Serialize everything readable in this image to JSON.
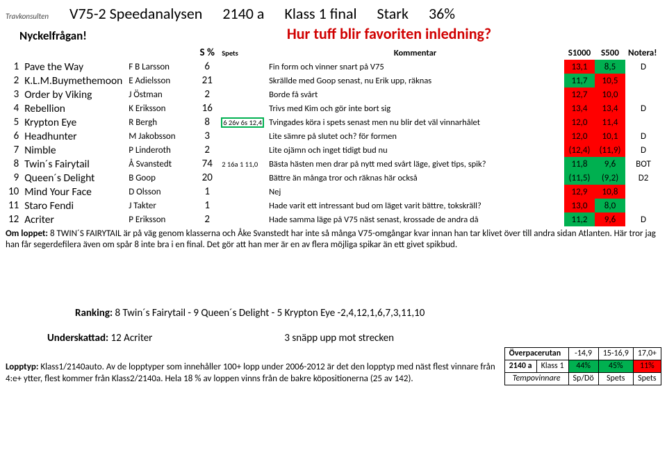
{
  "header": {
    "logo": "Travkonsulten",
    "race": "V75-2 Speedanalysen",
    "dist": "2140 a",
    "klass": "Klass 1 final",
    "stark": "Stark",
    "pct": "36%"
  },
  "sub": {
    "nyckel": "Nyckelfrågan!",
    "question": "Hur tuff blir favoriten inledning?"
  },
  "columns": {
    "spc": "S %",
    "spets": "Spets",
    "komm": "Kommentar",
    "s1000": "S1000",
    "s500": "S500",
    "notera": "Notera!"
  },
  "rows": [
    {
      "n": "1",
      "horse": "Pave the Way",
      "driver": "F B Larsson",
      "spc": "6",
      "spets": "",
      "komm": "Fin form och vinner snart på V75",
      "s1": "13,1",
      "s1c": "red",
      "s5": "8,5",
      "s5c": "green",
      "not": "D"
    },
    {
      "n": "2",
      "horse": "K.L.M.Buymethemoon",
      "driver": "E Adielsson",
      "spc": "21",
      "spets": "",
      "komm": "Skrällde med Goop senast, nu Erik upp, räknas",
      "s1": "11,7",
      "s1c": "green",
      "s5": "10,5",
      "s5c": "red",
      "not": ""
    },
    {
      "n": "3",
      "horse": "Order by Viking",
      "driver": "J Östman",
      "spc": "2",
      "spets": "",
      "komm": "Borde få svårt",
      "s1": "12,7",
      "s1c": "red",
      "s5": "10,0",
      "s5c": "red",
      "not": ""
    },
    {
      "n": "4",
      "horse": "Rebellion",
      "driver": "K Eriksson",
      "spc": "16",
      "spets": "",
      "komm": "Trivs med Kim och gör inte bort sig",
      "s1": "13,4",
      "s1c": "red",
      "s5": "13,4",
      "s5c": "red",
      "not": "D"
    },
    {
      "n": "5",
      "horse": "Krypton Eye",
      "driver": "R Bergh",
      "spc": "8",
      "spets": "6 26v 6s 12,4",
      "spetsbox": true,
      "komm": "Tvingades köra i spets senast men nu blir det väl vinnarhålet",
      "s1": "12,0",
      "s1c": "red",
      "s5": "11,4",
      "s5c": "red",
      "not": ""
    },
    {
      "n": "6",
      "horse": "Headhunter",
      "driver": "M Jakobsson",
      "spc": "3",
      "spets": "",
      "komm": "Lite sämre på slutet och? för formen",
      "s1": "12,0",
      "s1c": "red",
      "s5": "10,1",
      "s5c": "red",
      "not": "D"
    },
    {
      "n": "7",
      "horse": "Nimble",
      "driver": "P Linderoth",
      "spc": "2",
      "spets": "",
      "komm": "Lite ojämn och inget tidigt bud nu",
      "s1": "(12,4)",
      "s1c": "red",
      "s5": "(11,9)",
      "s5c": "red",
      "not": "D"
    },
    {
      "n": "8",
      "horse": "Twin´s Fairytail",
      "driver": "Å Svanstedt",
      "spc": "74",
      "spets": "2 16a 1 11,0",
      "komm": "Bästa hästen men drar på nytt med svårt läge, givet tips, spik?",
      "s1": "11,8",
      "s1c": "green",
      "s5": "9,6",
      "s5c": "green",
      "not": "BOT"
    },
    {
      "n": "9",
      "horse": "Queen´s Delight",
      "driver": "B Goop",
      "spc": "20",
      "spets": "",
      "komm": "Bättre än många tror och räknas här också",
      "s1": "(11,5)",
      "s1c": "green",
      "s5": "(9,2)",
      "s5c": "green",
      "not": "D2"
    },
    {
      "n": "10",
      "horse": "Mind Your Face",
      "driver": "D Olsson",
      "spc": "1",
      "spets": "",
      "komm": "Nej",
      "s1": "12,9",
      "s1c": "red",
      "s5": "10,8",
      "s5c": "red",
      "not": ""
    },
    {
      "n": "11",
      "horse": "Staro Fendi",
      "driver": "J Takter",
      "spc": "1",
      "spets": "",
      "komm": "Hade varit ett intressant bud om läget varit bättre, tokskräll?",
      "s1": "13,0",
      "s1c": "red",
      "s5": "8,0",
      "s5c": "green",
      "not": ""
    },
    {
      "n": "12",
      "horse": "Acriter",
      "driver": "P Eriksson",
      "spc": "2",
      "spets": "",
      "komm": "Hade samma läge på V75 näst senast, krossade de andra då",
      "s1": "11,2",
      "s1c": "green",
      "s5": "9,6",
      "s5c": "red",
      "not": "D"
    }
  ],
  "om": {
    "label": "Om loppet:",
    "text": " 8 TWIN´S FAIRYTAIL är på väg genom klasserna och Åke Svanstedt har inte så många V75-omgångar kvar innan han tar klivet över till andra sidan Atlanten. Här tror jag han får segerdefilera även om spår 8 inte bra i en final. Det gör att han mer är en av flera möjliga spikar än ett givet spikbud."
  },
  "ranking": {
    "label": "Ranking:",
    "text": " 8 Twin´s Fairytail - 9 Queen´s Delight - 5 Krypton Eye -2,4,12,1,6,7,3,11,10"
  },
  "under": {
    "label": "Underskattad:",
    "v1": " 12 Acriter",
    "v2": "3 snäpp upp mot strecken"
  },
  "lopptyp": {
    "label": "Lopptyp:",
    "text": " Klass1/2140auto. Av de lopptyper som innehåller 100+ lopp under 2006-2012 är det den lopptyp med näst flest vinnare från 4:e+ ytter, flest kommer från Klass2/2140a. Hela 18 % av loppen vinns från de bakre köpositionerna (25 av 142)."
  },
  "pace": {
    "r1": {
      "a": "Överpacerutan",
      "b": "-14,9",
      "c": "15-16,9",
      "d": "17,0+"
    },
    "r2": {
      "a": "2140 a",
      "b": "Klass 1",
      "c": "44%",
      "d": "45%",
      "e": "11%"
    },
    "r3": {
      "a": "Tempovinnare",
      "b": "Sp/Dö",
      "c": "Spets",
      "d": "Spets"
    }
  }
}
